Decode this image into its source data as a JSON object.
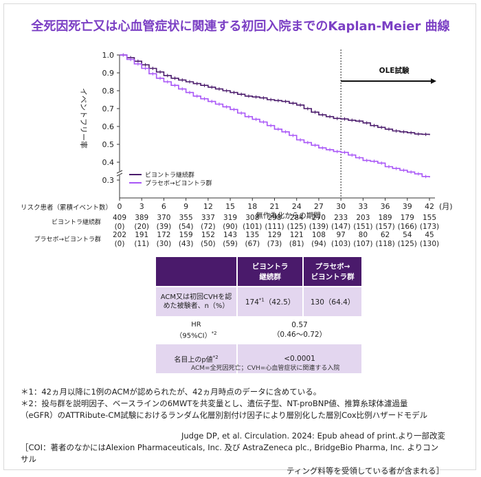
{
  "title": "全死因死亡又は心血管症状に関連する初回入院までのKaplan-Meier 曲線",
  "chart_data": {
    "type": "line",
    "ylabel": "イベントフリー率",
    "xlabel": "無作為化からの期間",
    "x_unit": "(月)",
    "xlim": [
      0,
      42
    ],
    "ylim": [
      0.3,
      1.0
    ],
    "xticks": [
      0,
      3,
      6,
      9,
      12,
      15,
      18,
      21,
      24,
      27,
      30,
      33,
      36,
      39,
      42
    ],
    "yticks": [
      "0.3",
      "0.4",
      "0.5",
      "0.6",
      "0.7",
      "0.8",
      "0.9",
      "1.0"
    ],
    "colors": {
      "continuous": "#4a1a6b",
      "placebo": "#a855f7"
    },
    "legend_position": "bottom-left",
    "annotation": {
      "label": "OLE試験",
      "x_start": 30,
      "x_end": 42
    },
    "series": [
      {
        "name": "ビヨントラ継続群",
        "color": "#4a1a6b",
        "x": [
          0,
          1,
          2,
          3,
          4,
          5,
          6,
          7,
          8,
          9,
          10,
          11,
          12,
          13,
          14,
          15,
          16,
          17,
          18,
          19,
          20,
          21,
          22,
          23,
          24,
          25,
          26,
          27,
          28,
          29,
          30,
          31,
          32,
          33,
          34,
          35,
          36,
          37,
          38,
          39,
          40,
          41,
          42
        ],
        "y": [
          1.0,
          0.985,
          0.965,
          0.945,
          0.925,
          0.905,
          0.885,
          0.87,
          0.86,
          0.85,
          0.84,
          0.83,
          0.82,
          0.81,
          0.8,
          0.79,
          0.78,
          0.77,
          0.765,
          0.76,
          0.75,
          0.745,
          0.74,
          0.73,
          0.72,
          0.7,
          0.68,
          0.665,
          0.655,
          0.645,
          0.642,
          0.635,
          0.63,
          0.62,
          0.605,
          0.595,
          0.585,
          0.575,
          0.57,
          0.565,
          0.558,
          0.556,
          0.552
        ]
      },
      {
        "name": "プラセボ→ビヨントラ群",
        "color": "#a855f7",
        "x": [
          0,
          1,
          2,
          3,
          4,
          5,
          6,
          7,
          8,
          9,
          10,
          11,
          12,
          13,
          14,
          15,
          16,
          17,
          18,
          19,
          20,
          21,
          22,
          23,
          24,
          25,
          26,
          27,
          28,
          29,
          30,
          31,
          32,
          33,
          34,
          35,
          36,
          37,
          38,
          39,
          40,
          41,
          42
        ],
        "y": [
          1.0,
          0.975,
          0.95,
          0.925,
          0.895,
          0.87,
          0.85,
          0.83,
          0.81,
          0.79,
          0.77,
          0.755,
          0.74,
          0.725,
          0.71,
          0.695,
          0.675,
          0.655,
          0.64,
          0.625,
          0.605,
          0.585,
          0.57,
          0.55,
          0.525,
          0.51,
          0.495,
          0.48,
          0.47,
          0.46,
          0.455,
          0.44,
          0.425,
          0.41,
          0.405,
          0.395,
          0.375,
          0.365,
          0.355,
          0.345,
          0.335,
          0.32,
          0.315
        ]
      }
    ]
  },
  "risk": {
    "header": "リスク患者（累積イベント数）",
    "groups": [
      {
        "label": "ビヨントラ継続群",
        "counts": [
          "409",
          "389",
          "370",
          "355",
          "337",
          "319",
          "308",
          "298",
          "284",
          "270",
          "233",
          "203",
          "189",
          "179",
          "155"
        ],
        "events": [
          "(0)",
          "(20)",
          "(39)",
          "(54)",
          "(72)",
          "(90)",
          "(101)",
          "(111)",
          "(125)",
          "(139)",
          "(147)",
          "(151)",
          "(157)",
          "(166)",
          "(173)"
        ]
      },
      {
        "label": "プラセボ→ビヨントラ群",
        "counts": [
          "202",
          "191",
          "172",
          "159",
          "152",
          "143",
          "135",
          "129",
          "121",
          "108",
          "97",
          "80",
          "62",
          "54",
          "45"
        ],
        "events": [
          "(0)",
          "(11)",
          "(30)",
          "(43)",
          "(50)",
          "(59)",
          "(67)",
          "(73)",
          "(81)",
          "(94)",
          "(103)",
          "(107)",
          "(118)",
          "(125)",
          "(130)"
        ]
      }
    ]
  },
  "table": {
    "col1": [
      "ビヨントラ",
      "継続群"
    ],
    "col2": [
      "プラセボ→",
      "ビヨントラ群"
    ],
    "row1_label": [
      "ACM又は初回CVHを認",
      "めた被験者、n（%）"
    ],
    "row1_val1": "174",
    "row1_val1_sup": "*1",
    "row1_val1_pct": "（42.5）",
    "row1_val2": "130（64.4）",
    "row2_label": [
      "HR",
      "（95%CI）"
    ],
    "row2_sup": "*2",
    "row2_val": [
      "0.57",
      "（0.46〜0.72）"
    ],
    "row3_label": "名目上のp値",
    "row3_sup": "*2",
    "row3_val": "<0.0001"
  },
  "abbr": "ACM=全死因死亡；CVH=心血管症状に関連する入院",
  "notes": [
    "＊1：42ヵ月以降に1例のACMが認められたが、42ヵ月時点のデータに含めている。",
    "＊2：投与群を説明因子、ベースラインの6MWTを共変量とし、遺伝子型、NT-proBNP値、推算糸球体濾過量",
    "（eGFR）のATTRibute-CM試験におけるランダム化層別割付け因子により層別化した層別Cox比例ハザードモデル"
  ],
  "reference": "Judge DP, et al. Circulation. 2024: Epub ahead of print.より一部改変",
  "coi": [
    "［COI：著者のなかにはAlexion Pharmaceuticals, Inc. 及び AstraZeneca plc., BridgeBio Pharma, Inc. よりコンサル",
    "ティング料等を受領している者が含まれる］"
  ]
}
